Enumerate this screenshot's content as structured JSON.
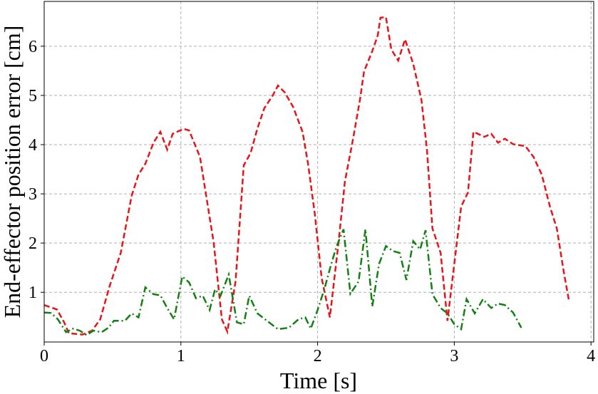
{
  "chart_data": {
    "type": "line",
    "xlabel": "Time [s]",
    "ylabel": "End-effector position error [cm]",
    "xlim": [
      0,
      4.02
    ],
    "ylim": [
      -0.01,
      6.91
    ],
    "xticks": [
      0,
      1,
      2,
      3,
      4
    ],
    "yticks": [
      1,
      2,
      3,
      4,
      5,
      6
    ],
    "grid": true,
    "series": [
      {
        "color": "#e8141a",
        "dash": "dashed",
        "x": [
          0,
          0.094,
          0.146,
          0.18,
          0.28,
          0.35,
          0.41,
          0.48,
          0.56,
          0.64,
          0.69,
          0.74,
          0.8,
          0.85,
          0.9,
          0.94,
          1.02,
          1.06,
          1.14,
          1.19,
          1.24,
          1.3,
          1.34,
          1.4,
          1.46,
          1.51,
          1.56,
          1.61,
          1.67,
          1.71,
          1.76,
          1.82,
          1.89,
          1.93,
          1.98,
          2.03,
          2.09,
          2.15,
          2.2,
          2.26,
          2.31,
          2.34,
          2.4,
          2.44,
          2.46,
          2.5,
          2.54,
          2.59,
          2.64,
          2.7,
          2.76,
          2.8,
          2.84,
          2.9,
          2.95,
          3.0,
          3.05,
          3.1,
          3.14,
          3.22,
          3.27,
          3.32,
          3.37,
          3.43,
          3.52,
          3.58,
          3.64,
          3.7,
          3.75,
          3.8,
          3.84
        ],
        "values": [
          0.74,
          0.65,
          0.39,
          0.17,
          0.14,
          0.22,
          0.45,
          1.14,
          1.8,
          2.96,
          3.39,
          3.61,
          4.04,
          4.26,
          3.9,
          4.22,
          4.32,
          4.29,
          3.75,
          2.88,
          2.01,
          0.45,
          0.2,
          1.22,
          3.58,
          3.83,
          4.33,
          4.74,
          4.99,
          5.2,
          5.06,
          4.77,
          4.26,
          3.61,
          2.59,
          1.29,
          0.49,
          1.94,
          3.25,
          4.12,
          4.91,
          5.49,
          5.9,
          6.22,
          6.58,
          6.59,
          5.93,
          5.71,
          6.14,
          5.64,
          4.91,
          3.9,
          2.3,
          1.8,
          0.42,
          1.58,
          2.74,
          3.03,
          4.26,
          4.16,
          4.22,
          4.04,
          4.12,
          4.01,
          3.97,
          3.75,
          3.39,
          2.74,
          2.3,
          1.43,
          0.81
        ]
      },
      {
        "color": "#128012",
        "dash": "dashdot",
        "x": [
          0,
          0.05,
          0.1,
          0.16,
          0.21,
          0.26,
          0.31,
          0.36,
          0.42,
          0.47,
          0.51,
          0.59,
          0.64,
          0.69,
          0.74,
          0.8,
          0.85,
          0.9,
          0.95,
          1.01,
          1.06,
          1.11,
          1.16,
          1.21,
          1.25,
          1.29,
          1.35,
          1.41,
          1.46,
          1.5,
          1.56,
          1.63,
          1.71,
          1.79,
          1.86,
          1.91,
          1.95,
          2.0,
          2.05,
          2.1,
          2.14,
          2.19,
          2.24,
          2.3,
          2.35,
          2.4,
          2.45,
          2.5,
          2.55,
          2.6,
          2.65,
          2.7,
          2.75,
          2.79,
          2.84,
          2.9,
          2.95,
          3.0,
          3.05,
          3.09,
          3.15,
          3.21,
          3.27,
          3.32,
          3.37,
          3.43,
          3.49
        ],
        "values": [
          0.59,
          0.58,
          0.45,
          0.19,
          0.26,
          0.22,
          0.13,
          0.22,
          0.19,
          0.28,
          0.42,
          0.42,
          0.57,
          0.49,
          1.1,
          0.96,
          0.94,
          0.68,
          0.45,
          1.32,
          1.2,
          0.88,
          0.93,
          0.64,
          1.06,
          0.93,
          1.36,
          0.39,
          0.35,
          0.93,
          0.57,
          0.42,
          0.25,
          0.28,
          0.45,
          0.49,
          0.26,
          0.64,
          1.07,
          1.58,
          1.94,
          2.28,
          0.97,
          1.22,
          2.28,
          0.71,
          1.58,
          1.94,
          1.84,
          1.8,
          1.25,
          2.04,
          1.87,
          2.26,
          0.96,
          0.68,
          0.57,
          0.35,
          0.25,
          0.86,
          0.57,
          0.86,
          0.68,
          0.77,
          0.74,
          0.59,
          0.28
        ]
      }
    ]
  }
}
